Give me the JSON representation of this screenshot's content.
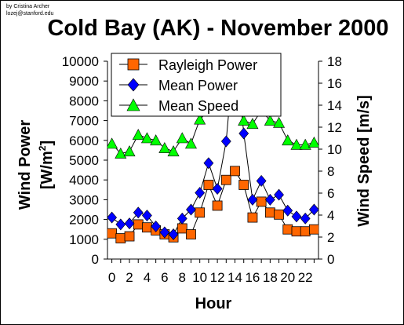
{
  "credit": {
    "line1": "by Cristina Archer",
    "line2": "lozej@stanford.edu"
  },
  "chart_data": {
    "type": "line",
    "title": "Cold Bay (AK) - November 2000",
    "xlabel": "Hour",
    "ylabel_left": "Wind Power [W/m²]",
    "ylabel_left_main": "Wind Power",
    "ylabel_left_unit": "[W/m",
    "ylabel_left_sup": "2",
    "ylabel_left_close": "]",
    "ylabel_right": "Wind Speed [m/s]",
    "x": [
      0,
      1,
      2,
      3,
      4,
      5,
      6,
      7,
      8,
      9,
      10,
      11,
      12,
      13,
      14,
      15,
      16,
      17,
      18,
      19,
      20,
      21,
      22,
      23
    ],
    "x_tick_labels": [
      "0",
      "2",
      "4",
      "6",
      "8",
      "10",
      "12",
      "14",
      "16",
      "18",
      "20",
      "22"
    ],
    "y_left_range": [
      0,
      10000
    ],
    "y_left_ticks": [
      "0",
      "1000",
      "2000",
      "3000",
      "4000",
      "5000",
      "6000",
      "7000",
      "8000",
      "9000",
      "10000"
    ],
    "y_right_range": [
      0,
      18
    ],
    "y_right_ticks": [
      "0",
      "2",
      "4",
      "6",
      "8",
      "10",
      "12",
      "14",
      "16",
      "18"
    ],
    "legend_position": "top-center",
    "grid": false,
    "series": [
      {
        "name": "Rayleigh Power",
        "axis": "left",
        "marker": "square",
        "color": "#ff6600",
        "values": [
          1300,
          1050,
          1150,
          1750,
          1600,
          1450,
          1250,
          1100,
          1550,
          1250,
          2350,
          3750,
          2700,
          4000,
          4450,
          3750,
          2100,
          2900,
          2350,
          2250,
          1500,
          1400,
          1400,
          1500
        ]
      },
      {
        "name": "Mean Power",
        "axis": "left",
        "marker": "diamond",
        "color": "#0000ff",
        "values": [
          2100,
          1750,
          1800,
          2350,
          2200,
          1650,
          1350,
          1250,
          2050,
          2500,
          3350,
          4850,
          3550,
          5950,
          11000,
          6350,
          3000,
          3950,
          3000,
          3250,
          2450,
          2150,
          2050,
          2500
        ]
      },
      {
        "name": "Mean Speed",
        "axis": "right",
        "marker": "triangle",
        "color": "#00ff00",
        "values": [
          10.5,
          9.6,
          9.8,
          11.3,
          11.0,
          10.8,
          10.1,
          9.8,
          11.0,
          10.5,
          12.7,
          13.5,
          14.0,
          15.5,
          16.5,
          12.6,
          12.3,
          13.5,
          12.6,
          12.4,
          10.8,
          10.4,
          10.4,
          10.6
        ]
      }
    ]
  }
}
